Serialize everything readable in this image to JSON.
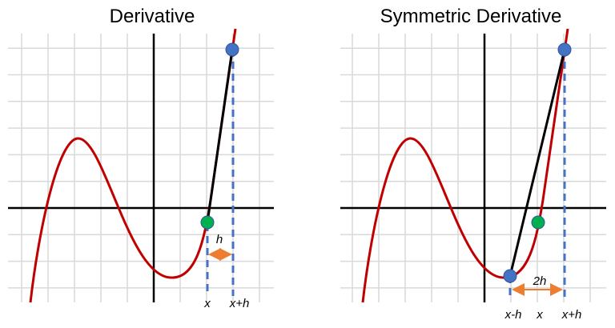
{
  "panels": [
    {
      "title": "Derivative",
      "labels": [
        "h",
        "x",
        "x+h"
      ]
    },
    {
      "title": "Symmetric Derivative",
      "labels": [
        "2h",
        "x-h",
        "x",
        "x+h"
      ]
    }
  ]
}
